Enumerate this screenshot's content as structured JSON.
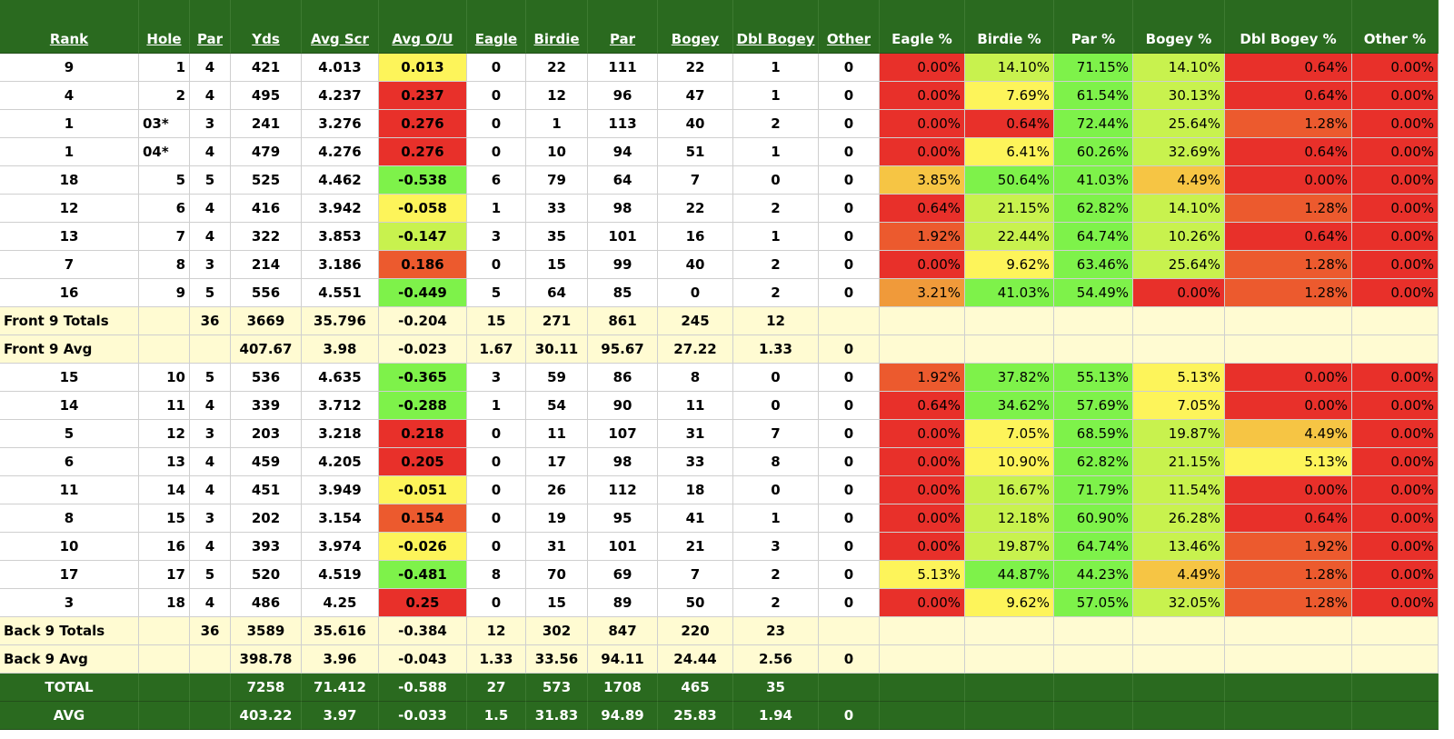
{
  "headers": [
    "Rank",
    "Hole",
    "Par",
    "Yds",
    "Avg Scr",
    "Avg O/U",
    "Eagle",
    "Birdie",
    "Par",
    "Bogey",
    "Dbl Bogey",
    "Other",
    "Eagle %",
    "Birdie %",
    "Par %",
    "Bogey %",
    "Dbl Bogey %",
    "Other %"
  ],
  "front_nine": [
    [
      "9",
      "1",
      "4",
      "421",
      "4.013",
      "0.013",
      "0",
      "22",
      "111",
      "22",
      "1",
      "0",
      "0.00%",
      "14.10%",
      "71.15%",
      "14.10%",
      "0.64%",
      "0.00%"
    ],
    [
      "4",
      "2",
      "4",
      "495",
      "4.237",
      "0.237",
      "0",
      "12",
      "96",
      "47",
      "1",
      "0",
      "0.00%",
      "7.69%",
      "61.54%",
      "30.13%",
      "0.64%",
      "0.00%"
    ],
    [
      "1",
      "03*",
      "3",
      "241",
      "3.276",
      "0.276",
      "0",
      "1",
      "113",
      "40",
      "2",
      "0",
      "0.00%",
      "0.64%",
      "72.44%",
      "25.64%",
      "1.28%",
      "0.00%"
    ],
    [
      "1",
      "04*",
      "4",
      "479",
      "4.276",
      "0.276",
      "0",
      "10",
      "94",
      "51",
      "1",
      "0",
      "0.00%",
      "6.41%",
      "60.26%",
      "32.69%",
      "0.64%",
      "0.00%"
    ],
    [
      "18",
      "5",
      "5",
      "525",
      "4.462",
      "-0.538",
      "6",
      "79",
      "64",
      "7",
      "0",
      "0",
      "3.85%",
      "50.64%",
      "41.03%",
      "4.49%",
      "0.00%",
      "0.00%"
    ],
    [
      "12",
      "6",
      "4",
      "416",
      "3.942",
      "-0.058",
      "1",
      "33",
      "98",
      "22",
      "2",
      "0",
      "0.64%",
      "21.15%",
      "62.82%",
      "14.10%",
      "1.28%",
      "0.00%"
    ],
    [
      "13",
      "7",
      "4",
      "322",
      "3.853",
      "-0.147",
      "3",
      "35",
      "101",
      "16",
      "1",
      "0",
      "1.92%",
      "22.44%",
      "64.74%",
      "10.26%",
      "0.64%",
      "0.00%"
    ],
    [
      "7",
      "8",
      "3",
      "214",
      "3.186",
      "0.186",
      "0",
      "15",
      "99",
      "40",
      "2",
      "0",
      "0.00%",
      "9.62%",
      "63.46%",
      "25.64%",
      "1.28%",
      "0.00%"
    ],
    [
      "16",
      "9",
      "5",
      "556",
      "4.551",
      "-0.449",
      "5",
      "64",
      "85",
      "0",
      "2",
      "0",
      "3.21%",
      "41.03%",
      "54.49%",
      "0.00%",
      "1.28%",
      "0.00%"
    ]
  ],
  "front_totals": [
    "Front 9 Totals",
    "",
    "36",
    "3669",
    "35.796",
    "-0.204",
    "15",
    "271",
    "861",
    "245",
    "12",
    "",
    "",
    "",
    "",
    "",
    "",
    ""
  ],
  "front_avg": [
    "Front 9 Avg",
    "",
    "",
    "407.67",
    "3.98",
    "-0.023",
    "1.67",
    "30.11",
    "95.67",
    "27.22",
    "1.33",
    "0",
    "",
    "",
    "",
    "",
    "",
    ""
  ],
  "back_nine": [
    [
      "15",
      "10",
      "5",
      "536",
      "4.635",
      "-0.365",
      "3",
      "59",
      "86",
      "8",
      "0",
      "0",
      "1.92%",
      "37.82%",
      "55.13%",
      "5.13%",
      "0.00%",
      "0.00%"
    ],
    [
      "14",
      "11",
      "4",
      "339",
      "3.712",
      "-0.288",
      "1",
      "54",
      "90",
      "11",
      "0",
      "0",
      "0.64%",
      "34.62%",
      "57.69%",
      "7.05%",
      "0.00%",
      "0.00%"
    ],
    [
      "5",
      "12",
      "3",
      "203",
      "3.218",
      "0.218",
      "0",
      "11",
      "107",
      "31",
      "7",
      "0",
      "0.00%",
      "7.05%",
      "68.59%",
      "19.87%",
      "4.49%",
      "0.00%"
    ],
    [
      "6",
      "13",
      "4",
      "459",
      "4.205",
      "0.205",
      "0",
      "17",
      "98",
      "33",
      "8",
      "0",
      "0.00%",
      "10.90%",
      "62.82%",
      "21.15%",
      "5.13%",
      "0.00%"
    ],
    [
      "11",
      "14",
      "4",
      "451",
      "3.949",
      "-0.051",
      "0",
      "26",
      "112",
      "18",
      "0",
      "0",
      "0.00%",
      "16.67%",
      "71.79%",
      "11.54%",
      "0.00%",
      "0.00%"
    ],
    [
      "8",
      "15",
      "3",
      "202",
      "3.154",
      "0.154",
      "0",
      "19",
      "95",
      "41",
      "1",
      "0",
      "0.00%",
      "12.18%",
      "60.90%",
      "26.28%",
      "0.64%",
      "0.00%"
    ],
    [
      "10",
      "16",
      "4",
      "393",
      "3.974",
      "-0.026",
      "0",
      "31",
      "101",
      "21",
      "3",
      "0",
      "0.00%",
      "19.87%",
      "64.74%",
      "13.46%",
      "1.92%",
      "0.00%"
    ],
    [
      "17",
      "17",
      "5",
      "520",
      "4.519",
      "-0.481",
      "8",
      "70",
      "69",
      "7",
      "2",
      "0",
      "5.13%",
      "44.87%",
      "44.23%",
      "4.49%",
      "1.28%",
      "0.00%"
    ],
    [
      "3",
      "18",
      "4",
      "486",
      "4.25",
      "0.25",
      "0",
      "15",
      "89",
      "50",
      "2",
      "0",
      "0.00%",
      "9.62%",
      "57.05%",
      "32.05%",
      "1.28%",
      "0.00%"
    ]
  ],
  "back_totals": [
    "Back 9 Totals",
    "",
    "36",
    "3589",
    "35.616",
    "-0.384",
    "12",
    "302",
    "847",
    "220",
    "23",
    "",
    "",
    "",
    "",
    "",
    "",
    ""
  ],
  "back_avg": [
    "Back 9 Avg",
    "",
    "",
    "398.78",
    "3.96",
    "-0.043",
    "1.33",
    "33.56",
    "94.11",
    "24.44",
    "2.56",
    "0",
    "",
    "",
    "",
    "",
    "",
    ""
  ],
  "total": [
    "TOTAL",
    "",
    "",
    "7258",
    "71.412",
    "-0.588",
    "27",
    "573",
    "1708",
    "465",
    "35",
    "",
    "",
    "",
    "",
    "",
    "",
    ""
  ],
  "avg": [
    "AVG",
    "",
    "",
    "403.22",
    "3.97",
    "-0.033",
    "1.5",
    "31.83",
    "94.89",
    "25.83",
    "1.94",
    "0",
    "",
    "",
    "",
    "",
    "",
    ""
  ],
  "heatmap_colors": {
    "red": "#e8302a",
    "orange_red": "#ec5a2e",
    "orange": "#f09a3a",
    "amber": "#f6c544",
    "yellow": "#fdf45a",
    "lime": "#c8f24e",
    "green": "#7ef24a"
  }
}
